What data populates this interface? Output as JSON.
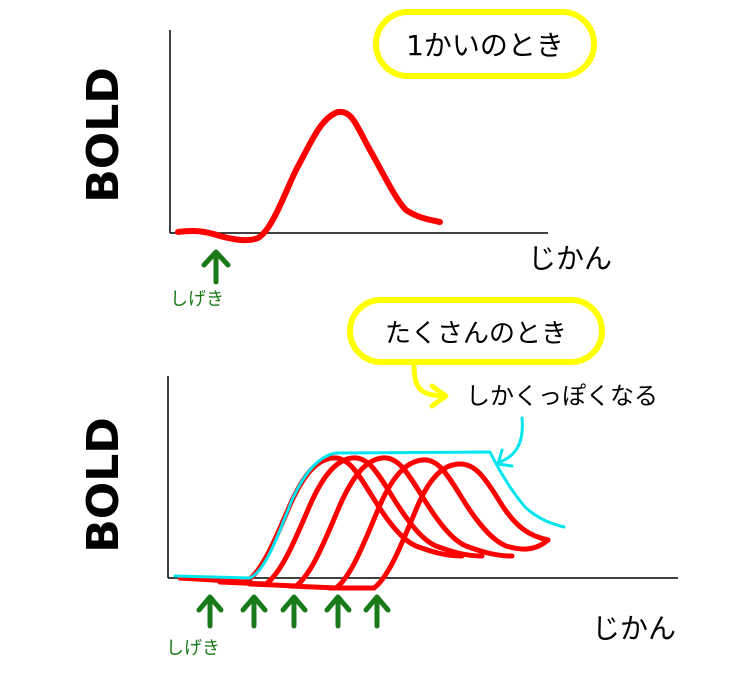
{
  "top_panel": {
    "y_label": "BOLD",
    "x_label": "じかん",
    "callout": "1かいのとき",
    "stimulus_label": "しげき"
  },
  "bottom_panel": {
    "y_label": "BOLD",
    "x_label": "じかん",
    "callout": "たくさんのとき",
    "annotation": "しかくっぽくなる",
    "stimulus_label": "しげき",
    "stimulus_count": 5
  },
  "colors": {
    "response": "#ff0000",
    "sum": "#00e5ee",
    "stimulus": "#1a7a1a",
    "callout_border": "#ffff00",
    "axis": "#000000"
  }
}
